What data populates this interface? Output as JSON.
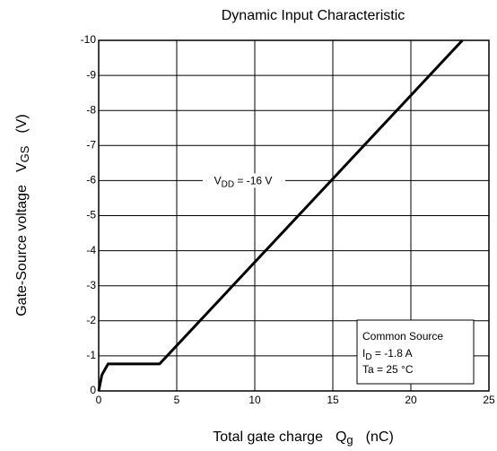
{
  "chart_data": {
    "type": "line",
    "title": "Dynamic Input Characteristic",
    "x_label": {
      "text": "Total gate charge",
      "symbol": "Q",
      "sub": "g",
      "unit": "(nC)"
    },
    "y_label": {
      "text": "Gate-Source voltage",
      "symbol": "V",
      "sub": "GS",
      "unit": "(V)"
    },
    "x": [
      0,
      0.2,
      0.6,
      3.9,
      23.3
    ],
    "series": [
      {
        "color": "#000000",
        "values": [
          0,
          -0.45,
          -0.77,
          -0.77,
          -10
        ]
      }
    ],
    "xlim": [
      0,
      25
    ],
    "xticks": [
      0,
      5,
      10,
      15,
      20,
      25
    ],
    "ylim": [
      0,
      -10
    ],
    "yticks": [
      0,
      -1,
      -2,
      -3,
      -4,
      -5,
      -6,
      -7,
      -8,
      -9,
      -10
    ],
    "grid": true,
    "curve_label": {
      "symbol": "V",
      "sub": "DD",
      "rest": " = -16 V"
    },
    "legend_box": {
      "line1": "Common Source",
      "id_symbol": "I",
      "id_sub": "D",
      "id_rest": " = -1.8 A",
      "line3": "Ta = 25 °C"
    }
  }
}
